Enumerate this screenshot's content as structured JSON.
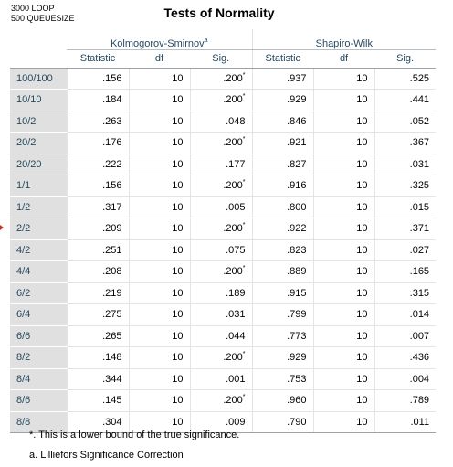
{
  "caption": {
    "line1": "3000 LOOP",
    "line2": "500 QUEUESIZE"
  },
  "title": "Tests of Normality",
  "groups": {
    "ks": "Kolmogorov-Smirnov",
    "ks_sup": "a",
    "sw": "Shapiro-Wilk"
  },
  "columns": [
    "Statistic",
    "df",
    "Sig.",
    "Statistic",
    "df",
    "Sig."
  ],
  "rows": [
    {
      "label": "100/100",
      "v": [
        ".156",
        "10",
        ".200",
        ".937",
        "10",
        ".525"
      ],
      "star": true
    },
    {
      "label": "10/10",
      "v": [
        ".184",
        "10",
        ".200",
        ".929",
        "10",
        ".441"
      ],
      "star": true
    },
    {
      "label": "10/2",
      "v": [
        ".263",
        "10",
        ".048",
        ".846",
        "10",
        ".052"
      ],
      "star": false
    },
    {
      "label": "20/2",
      "v": [
        ".176",
        "10",
        ".200",
        ".921",
        "10",
        ".367"
      ],
      "star": true
    },
    {
      "label": "20/20",
      "v": [
        ".222",
        "10",
        ".177",
        ".827",
        "10",
        ".031"
      ],
      "star": false
    },
    {
      "label": "1/1",
      "v": [
        ".156",
        "10",
        ".200",
        ".916",
        "10",
        ".325"
      ],
      "star": true
    },
    {
      "label": "1/2",
      "v": [
        ".317",
        "10",
        ".005",
        ".800",
        "10",
        ".015"
      ],
      "star": false
    },
    {
      "label": "2/2",
      "v": [
        ".209",
        "10",
        ".200",
        ".922",
        "10",
        ".371"
      ],
      "star": true
    },
    {
      "label": "4/2",
      "v": [
        ".251",
        "10",
        ".075",
        ".823",
        "10",
        ".027"
      ],
      "star": false
    },
    {
      "label": "4/4",
      "v": [
        ".208",
        "10",
        ".200",
        ".889",
        "10",
        ".165"
      ],
      "star": true
    },
    {
      "label": "6/2",
      "v": [
        ".219",
        "10",
        ".189",
        ".915",
        "10",
        ".315"
      ],
      "star": false
    },
    {
      "label": "6/4",
      "v": [
        ".275",
        "10",
        ".031",
        ".799",
        "10",
        ".014"
      ],
      "star": false
    },
    {
      "label": "6/6",
      "v": [
        ".265",
        "10",
        ".044",
        ".773",
        "10",
        ".007"
      ],
      "star": false
    },
    {
      "label": "8/2",
      "v": [
        ".148",
        "10",
        ".200",
        ".929",
        "10",
        ".436"
      ],
      "star": true
    },
    {
      "label": "8/4",
      "v": [
        ".344",
        "10",
        ".001",
        ".753",
        "10",
        ".004"
      ],
      "star": false
    },
    {
      "label": "8/6",
      "v": [
        ".145",
        "10",
        ".200",
        ".960",
        "10",
        ".789"
      ],
      "star": true
    },
    {
      "label": "8/8",
      "v": [
        ".304",
        "10",
        ".009",
        ".790",
        "10",
        ".011"
      ],
      "star": false
    }
  ],
  "star_mark": "*",
  "footnotes": {
    "star": "*. This is a lower bound of the true significance.",
    "a": "a. Lilliefors Significance Correction"
  }
}
